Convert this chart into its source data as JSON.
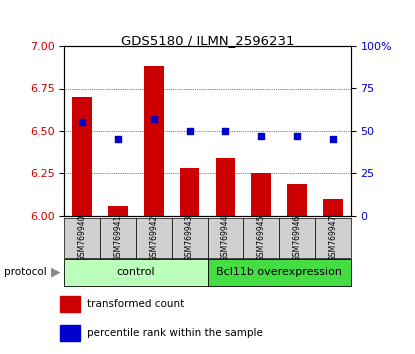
{
  "title": "GDS5180 / ILMN_2596231",
  "samples": [
    "GSM769940",
    "GSM769941",
    "GSM769942",
    "GSM769943",
    "GSM769944",
    "GSM769945",
    "GSM769946",
    "GSM769947"
  ],
  "red_values": [
    6.7,
    6.06,
    6.88,
    6.28,
    6.34,
    6.25,
    6.19,
    6.1
  ],
  "blue_values": [
    55,
    45,
    57,
    50,
    50,
    47,
    47,
    45
  ],
  "ylim_left": [
    6.0,
    7.0
  ],
  "ylim_right": [
    0,
    100
  ],
  "yticks_left": [
    6.0,
    6.25,
    6.5,
    6.75,
    7.0
  ],
  "yticks_right": [
    0,
    25,
    50,
    75,
    100
  ],
  "bar_color": "#cc0000",
  "dot_color": "#0000cc",
  "bar_bottom": 6.0,
  "ctrl_color": "#bbffbb",
  "bcl_color": "#44dd44",
  "protocol_label": "protocol",
  "legend_red": "transformed count",
  "legend_blue": "percentile rank within the sample",
  "left_ycolor": "#cc0000",
  "right_ycolor": "#0000cc"
}
